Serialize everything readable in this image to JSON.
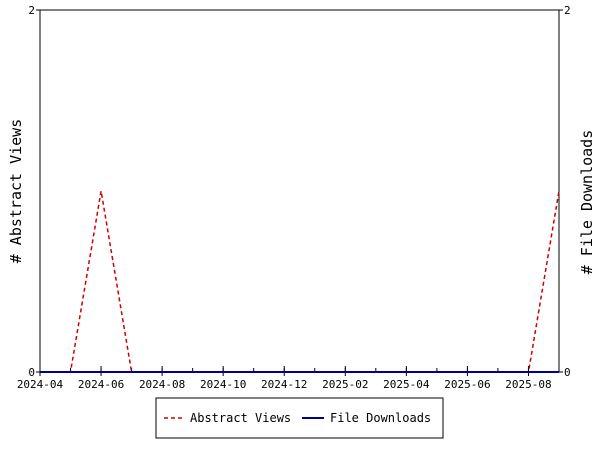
{
  "chart_data": {
    "type": "line",
    "y_left_label": "# Abstract Views",
    "y_right_label": "# File Downloads",
    "x_tick_labels": [
      "2024-04",
      "2024-06",
      "2024-08",
      "2024-10",
      "2024-12",
      "2025-02",
      "2025-04",
      "2025-06",
      "2025-08"
    ],
    "x": [
      "2024-04",
      "2024-05",
      "2024-06",
      "2024-07",
      "2024-08",
      "2024-09",
      "2024-10",
      "2024-11",
      "2024-12",
      "2025-01",
      "2025-02",
      "2025-03",
      "2025-04",
      "2025-05",
      "2025-06",
      "2025-07",
      "2025-08",
      "2025-09"
    ],
    "ylim_left": [
      0,
      2
    ],
    "ylim_right": [
      0,
      2
    ],
    "y_left_ticks": [
      "0",
      "2"
    ],
    "y_right_ticks": [
      "0",
      "2"
    ],
    "series": [
      {
        "name": "Abstract Views",
        "axis": "left",
        "color": "#cc0000",
        "style": "dashed",
        "values": [
          0,
          0,
          1,
          0,
          0,
          0,
          0,
          0,
          0,
          0,
          0,
          0,
          0,
          0,
          0,
          0,
          0,
          1
        ]
      },
      {
        "name": "File Downloads",
        "axis": "right",
        "color": "#000099",
        "style": "solid",
        "values": [
          0,
          0,
          0,
          0,
          0,
          0,
          0,
          0,
          0,
          0,
          0,
          0,
          0,
          0,
          0,
          0,
          0,
          0
        ]
      }
    ],
    "grid": false,
    "legend_position": "bottom"
  }
}
